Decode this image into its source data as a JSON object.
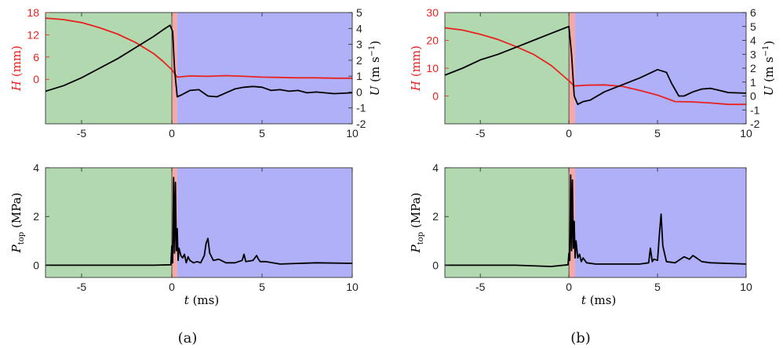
{
  "colors": {
    "approach": "#b2d8b0",
    "impact": "#f4a8a8",
    "post": "#b0b0f8",
    "height_line": "#e8221f",
    "axis_black": "#000000"
  },
  "panels": [
    {
      "caption": "(a)"
    },
    {
      "caption": "(b)"
    }
  ],
  "labels": {
    "h_axis": "H (mm)",
    "u_axis": "U (m s⁻¹)",
    "p_axis": "P_top (MPa)",
    "t_axis": "t (ms)"
  },
  "chart_data": [
    {
      "id": "a-top",
      "type": "line",
      "xlim": [
        -7,
        10
      ],
      "xticks": [
        -5,
        0,
        5,
        10
      ],
      "ylim_left": [
        -12,
        18
      ],
      "yticks_left": [
        0,
        6,
        12,
        18
      ],
      "ylim_right": [
        -2,
        5
      ],
      "yticks_right": [
        -2,
        -1,
        0,
        1,
        2,
        3,
        4,
        5
      ],
      "regions": [
        [
          -7,
          0
        ],
        [
          0,
          0.3
        ],
        [
          0.3,
          10
        ]
      ],
      "series": [
        {
          "axis": "left",
          "color": "#e8221f",
          "x": [
            -7,
            -6,
            -5,
            -4,
            -3,
            -2,
            -1,
            -0.5,
            0,
            0.3,
            1,
            2,
            3,
            4,
            5,
            6,
            7,
            8,
            9,
            10
          ],
          "y": [
            16.5,
            16.1,
            15.3,
            13.9,
            12.2,
            9.9,
            6.9,
            4.9,
            2.6,
            0.6,
            0.9,
            0.8,
            1.0,
            0.8,
            0.6,
            0.5,
            0.4,
            0.4,
            0.3,
            0.3
          ]
        },
        {
          "axis": "right",
          "color": "#000000",
          "x": [
            -7,
            -6,
            -5,
            -4,
            -3,
            -2,
            -1,
            -0.5,
            -0.1,
            0.05,
            0.15,
            0.3,
            0.5,
            1.0,
            1.5,
            2.0,
            2.5,
            3.0,
            3.5,
            4.0,
            4.5,
            5.0,
            5.5,
            6.0,
            6.5,
            7.0,
            7.5,
            8.0,
            9.0,
            10.0
          ],
          "y": [
            0.05,
            0.4,
            0.9,
            1.5,
            2.1,
            2.8,
            3.5,
            3.9,
            4.2,
            3.8,
            1.5,
            -0.3,
            -0.2,
            0.1,
            0.15,
            -0.25,
            -0.3,
            -0.05,
            0.2,
            0.3,
            0.35,
            0.3,
            0.1,
            0.15,
            0.05,
            0.1,
            -0.05,
            0.0,
            -0.1,
            -0.05
          ]
        }
      ]
    },
    {
      "id": "a-bottom",
      "type": "line",
      "xlim": [
        -7,
        10
      ],
      "xticks": [
        -5,
        0,
        5,
        10
      ],
      "ylim": [
        -0.5,
        4
      ],
      "yticks": [
        0,
        2,
        4
      ],
      "regions": [
        [
          -7,
          0
        ],
        [
          0,
          0.3
        ],
        [
          0.3,
          10
        ]
      ],
      "series": [
        {
          "color": "#000000",
          "x": [
            -7,
            -1,
            -0.05,
            0,
            0.05,
            0.1,
            0.15,
            0.2,
            0.25,
            0.3,
            0.35,
            0.4,
            0.5,
            0.6,
            0.7,
            0.8,
            0.9,
            1.0,
            1.2,
            1.4,
            1.6,
            1.8,
            1.9,
            2.0,
            2.1,
            2.3,
            2.6,
            3.0,
            3.5,
            3.9,
            4.0,
            4.1,
            4.5,
            4.7,
            4.8,
            4.9,
            5.2,
            6.0,
            8.0,
            10.0
          ],
          "y": [
            0.0,
            0.0,
            0.02,
            0.8,
            0.1,
            3.6,
            0.5,
            3.4,
            0.6,
            1.5,
            0.2,
            0.7,
            0.4,
            0.3,
            0.45,
            0.1,
            0.35,
            0.2,
            0.1,
            0.15,
            0.1,
            0.4,
            0.9,
            1.1,
            0.5,
            0.2,
            0.25,
            0.1,
            0.1,
            0.2,
            0.45,
            0.15,
            0.2,
            0.4,
            0.25,
            0.15,
            0.15,
            0.05,
            0.1,
            0.08
          ]
        }
      ]
    },
    {
      "id": "b-top",
      "type": "line",
      "xlim": [
        -7,
        10
      ],
      "xticks": [
        -5,
        0,
        5,
        10
      ],
      "ylim_left": [
        -10,
        30
      ],
      "yticks_left": [
        0,
        10,
        20,
        30
      ],
      "ylim_right": [
        -2,
        6
      ],
      "yticks_right": [
        -2,
        -1,
        0,
        1,
        2,
        3,
        4,
        5,
        6
      ],
      "regions": [
        [
          -7,
          0
        ],
        [
          0,
          0.35
        ],
        [
          0.35,
          10
        ]
      ],
      "series": [
        {
          "axis": "left",
          "color": "#e8221f",
          "x": [
            -7,
            -6,
            -5,
            -4,
            -3,
            -2,
            -1,
            0,
            0.3,
            1,
            2,
            3,
            4,
            5,
            6,
            7,
            8,
            9,
            10
          ],
          "y": [
            24.5,
            23.7,
            22.2,
            20.3,
            17.8,
            15.0,
            11.0,
            5.5,
            3.6,
            3.9,
            4.0,
            3.5,
            2.0,
            0.3,
            -2.0,
            -2.1,
            -2.5,
            -3.0,
            -3.0
          ]
        },
        {
          "axis": "right",
          "color": "#000000",
          "x": [
            -7,
            -6,
            -5,
            -4,
            -3,
            -2,
            -1,
            -0.2,
            0.0,
            0.15,
            0.3,
            0.5,
            0.8,
            1.2,
            2.0,
            3.0,
            4.0,
            5.0,
            5.5,
            5.8,
            6.2,
            6.5,
            7.0,
            7.5,
            8.0,
            8.5,
            9.0,
            10.0
          ],
          "y": [
            1.5,
            2.0,
            2.6,
            3.0,
            3.5,
            4.0,
            4.5,
            4.9,
            5.0,
            3.0,
            0.0,
            -0.6,
            -0.4,
            -0.3,
            0.3,
            0.8,
            1.3,
            1.9,
            1.7,
            0.9,
            0.0,
            0.0,
            0.3,
            0.5,
            0.55,
            0.4,
            0.25,
            0.2
          ]
        }
      ]
    },
    {
      "id": "b-bottom",
      "type": "line",
      "xlim": [
        -7,
        10
      ],
      "xticks": [
        -5,
        0,
        5,
        10
      ],
      "ylim": [
        -0.5,
        4
      ],
      "yticks": [
        0,
        2,
        4
      ],
      "regions": [
        [
          -7,
          0
        ],
        [
          0,
          0.35
        ],
        [
          0.35,
          10
        ]
      ],
      "series": [
        {
          "color": "#000000",
          "x": [
            -7,
            -3,
            -1,
            -0.05,
            0,
            0.05,
            0.1,
            0.15,
            0.2,
            0.25,
            0.3,
            0.35,
            0.4,
            0.5,
            0.6,
            0.7,
            0.8,
            1.0,
            1.5,
            2.0,
            3.0,
            4.0,
            4.5,
            4.6,
            4.7,
            4.8,
            5.0,
            5.1,
            5.2,
            5.3,
            5.5,
            6.0,
            6.5,
            6.8,
            7.0,
            7.2,
            7.5,
            8.0,
            10.0
          ],
          "y": [
            0.0,
            0.0,
            -0.05,
            0.02,
            0.5,
            0.2,
            3.7,
            0.6,
            3.5,
            0.7,
            1.8,
            0.3,
            1.0,
            0.3,
            0.45,
            0.15,
            0.3,
            0.1,
            0.05,
            0.05,
            0.05,
            0.05,
            0.1,
            0.7,
            0.15,
            0.25,
            0.2,
            1.2,
            2.1,
            0.8,
            0.15,
            0.1,
            0.35,
            0.25,
            0.4,
            0.3,
            0.15,
            0.1,
            0.05
          ]
        }
      ]
    }
  ]
}
